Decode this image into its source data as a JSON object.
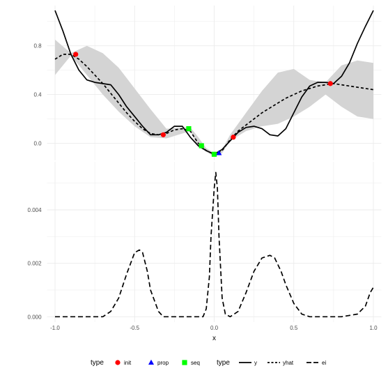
{
  "chart_data": [
    {
      "type": "line",
      "panel": "top",
      "xlim": [
        -1.05,
        1.05
      ],
      "ylim": [
        -0.14,
        1.13
      ],
      "yticks": [
        {
          "value": 0.0,
          "label": "0.0"
        },
        {
          "value": 0.4,
          "label": "0.4"
        },
        {
          "value": 0.8,
          "label": "0.8"
        }
      ],
      "grid": true,
      "band": {
        "x": [
          -1.0,
          -0.9,
          -0.8,
          -0.7,
          -0.6,
          -0.5,
          -0.4,
          -0.3,
          -0.2,
          -0.15,
          -0.1,
          -0.05,
          0.0,
          0.05,
          0.1,
          0.2,
          0.3,
          0.4,
          0.5,
          0.6,
          0.7,
          0.8,
          0.9,
          1.0
        ],
        "lower": [
          0.56,
          0.72,
          0.56,
          0.4,
          0.26,
          0.14,
          0.05,
          0.04,
          0.08,
          0.1,
          -0.03,
          -0.07,
          -0.11,
          -0.08,
          0.02,
          0.1,
          0.14,
          0.16,
          0.22,
          0.3,
          0.4,
          0.3,
          0.22,
          0.2
        ],
        "upper": [
          0.85,
          0.74,
          0.8,
          0.74,
          0.62,
          0.45,
          0.28,
          0.12,
          0.13,
          0.13,
          0.05,
          -0.04,
          -0.08,
          -0.05,
          0.07,
          0.25,
          0.43,
          0.58,
          0.61,
          0.52,
          0.5,
          0.64,
          0.68,
          0.66
        ]
      },
      "series": [
        {
          "key": "y",
          "style": "solid",
          "x": [
            -1.0,
            -0.95,
            -0.9,
            -0.85,
            -0.8,
            -0.75,
            -0.7,
            -0.65,
            -0.6,
            -0.55,
            -0.5,
            -0.45,
            -0.4,
            -0.35,
            -0.3,
            -0.25,
            -0.2,
            -0.15,
            -0.1,
            -0.05,
            0.0,
            0.05,
            0.1,
            0.15,
            0.2,
            0.25,
            0.3,
            0.35,
            0.4,
            0.45,
            0.5,
            0.55,
            0.6,
            0.65,
            0.7,
            0.75,
            0.8,
            0.85,
            0.9,
            0.95,
            1.0
          ],
          "y": [
            1.09,
            0.92,
            0.73,
            0.6,
            0.52,
            0.5,
            0.49,
            0.48,
            0.4,
            0.3,
            0.22,
            0.14,
            0.07,
            0.07,
            0.09,
            0.14,
            0.14,
            0.05,
            -0.02,
            -0.06,
            -0.09,
            -0.05,
            0.02,
            0.09,
            0.13,
            0.14,
            0.12,
            0.07,
            0.06,
            0.12,
            0.25,
            0.38,
            0.47,
            0.5,
            0.5,
            0.49,
            0.55,
            0.66,
            0.82,
            0.96,
            1.09
          ]
        },
        {
          "key": "yhat",
          "style": "dashed",
          "x": [
            -1.0,
            -0.95,
            -0.9,
            -0.85,
            -0.8,
            -0.75,
            -0.7,
            -0.65,
            -0.6,
            -0.55,
            -0.5,
            -0.45,
            -0.4,
            -0.35,
            -0.3,
            -0.25,
            -0.2,
            -0.15,
            -0.1,
            -0.05,
            0.0,
            0.05,
            0.1,
            0.15,
            0.2,
            0.25,
            0.3,
            0.35,
            0.4,
            0.45,
            0.5,
            0.55,
            0.6,
            0.65,
            0.7,
            0.75,
            0.8,
            0.85,
            0.9,
            0.95,
            1.0
          ],
          "y": [
            0.69,
            0.73,
            0.73,
            0.69,
            0.63,
            0.56,
            0.49,
            0.41,
            0.33,
            0.25,
            0.18,
            0.12,
            0.08,
            0.07,
            0.08,
            0.11,
            0.12,
            0.1,
            0.0,
            -0.06,
            -0.09,
            -0.06,
            0.03,
            0.1,
            0.15,
            0.2,
            0.25,
            0.29,
            0.33,
            0.37,
            0.4,
            0.43,
            0.45,
            0.47,
            0.48,
            0.49,
            0.48,
            0.47,
            0.46,
            0.45,
            0.44
          ]
        }
      ],
      "points": [
        {
          "type": "init",
          "x": -0.87,
          "y": 0.73
        },
        {
          "type": "init",
          "x": -0.32,
          "y": 0.07
        },
        {
          "type": "init",
          "x": 0.12,
          "y": 0.05
        },
        {
          "type": "init",
          "x": 0.73,
          "y": 0.49
        },
        {
          "type": "seq",
          "x": -0.16,
          "y": 0.12
        },
        {
          "type": "seq",
          "x": -0.08,
          "y": -0.02
        },
        {
          "type": "seq",
          "x": 0.0,
          "y": -0.09
        },
        {
          "type": "prop",
          "x": 0.03,
          "y": -0.08
        }
      ]
    },
    {
      "type": "line",
      "panel": "bottom",
      "xlim": [
        -1.05,
        1.05
      ],
      "ylim": [
        -0.0002,
        0.0058
      ],
      "xticks": [
        {
          "value": -1.0,
          "label": "-1.0"
        },
        {
          "value": -0.5,
          "label": "-0.5"
        },
        {
          "value": 0.0,
          "label": "0.0"
        },
        {
          "value": 0.5,
          "label": "0.5"
        },
        {
          "value": 1.0,
          "label": "1.0"
        }
      ],
      "yticks": [
        {
          "value": 0.0,
          "label": "0.000"
        },
        {
          "value": 0.002,
          "label": "0.002"
        },
        {
          "value": 0.004,
          "label": "0.004"
        }
      ],
      "xlabel": "x",
      "grid": true,
      "series": [
        {
          "key": "ei",
          "style": "longdash",
          "x": [
            -1.0,
            -0.9,
            -0.8,
            -0.7,
            -0.65,
            -0.6,
            -0.55,
            -0.5,
            -0.47,
            -0.45,
            -0.42,
            -0.4,
            -0.35,
            -0.32,
            -0.3,
            -0.25,
            -0.2,
            -0.15,
            -0.1,
            -0.07,
            -0.05,
            -0.03,
            -0.02,
            0.0,
            0.01,
            0.02,
            0.03,
            0.05,
            0.07,
            0.1,
            0.15,
            0.2,
            0.25,
            0.3,
            0.35,
            0.38,
            0.42,
            0.45,
            0.5,
            0.55,
            0.6,
            0.7,
            0.8,
            0.9,
            0.95,
            0.98,
            1.0
          ],
          "y": [
            0.0,
            0.0,
            0.0,
            0.0,
            0.0002,
            0.0007,
            0.0016,
            0.0024,
            0.0025,
            0.0024,
            0.0017,
            0.001,
            0.0002,
            0.0,
            0.0,
            0.0,
            0.0,
            0.0,
            0.0,
            0.0,
            0.0003,
            0.0015,
            0.003,
            0.0048,
            0.0054,
            0.0048,
            0.003,
            0.0007,
            0.0001,
            0.0,
            0.0002,
            0.0009,
            0.0017,
            0.0022,
            0.0023,
            0.0022,
            0.0017,
            0.0012,
            0.0005,
            0.0001,
            0.0,
            0.0,
            0.0,
            0.0001,
            0.0004,
            0.0009,
            0.0011
          ]
        }
      ]
    }
  ],
  "legend": {
    "points_title": "type",
    "points": [
      {
        "label": "init",
        "color": "#ff0000",
        "shape": "circle"
      },
      {
        "label": "prop",
        "color": "#0000ff",
        "shape": "triangle"
      },
      {
        "label": "seq",
        "color": "#00ff00",
        "shape": "square"
      }
    ],
    "lines_title": "type",
    "lines": [
      {
        "label": "y",
        "style": "solid"
      },
      {
        "label": "yhat",
        "style": "dashed"
      },
      {
        "label": "ei",
        "style": "longdash"
      }
    ]
  },
  "colors": {
    "init": "#ff0000",
    "prop": "#0000ff",
    "seq": "#00ff00",
    "band": "#d4d4d4",
    "line": "#000000",
    "grid": "#ebebeb",
    "tick_text": "#4d4d4d"
  }
}
